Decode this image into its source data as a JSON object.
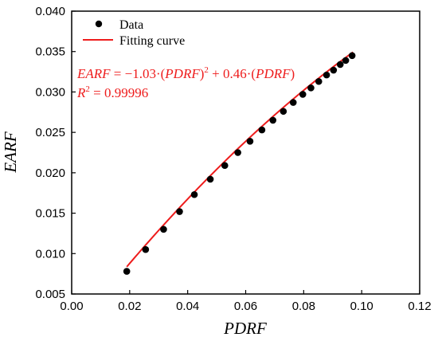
{
  "chart_data": {
    "type": "scatter",
    "xlabel": "PDRF",
    "ylabel": "EARF",
    "xlim": [
      0.0,
      0.12
    ],
    "ylim": [
      0.005,
      0.04
    ],
    "x_ticks": [
      "0.00",
      "0.02",
      "0.04",
      "0.06",
      "0.08",
      "0.10",
      "0.12"
    ],
    "y_ticks": [
      "0.005",
      "0.010",
      "0.015",
      "0.020",
      "0.025",
      "0.030",
      "0.035",
      "0.040"
    ],
    "legend": {
      "position": "top-left",
      "items": [
        "Data",
        "Fitting curve"
      ]
    },
    "series": [
      {
        "name": "Data",
        "style": "markers",
        "color": "#000000",
        "x": [
          0.019,
          0.0255,
          0.0317,
          0.0372,
          0.0423,
          0.0478,
          0.0528,
          0.0573,
          0.0615,
          0.0656,
          0.0694,
          0.073,
          0.0764,
          0.0797,
          0.0825,
          0.0852,
          0.0879,
          0.0903,
          0.0926,
          0.0945,
          0.0967
        ],
        "y": [
          0.0078,
          0.0105,
          0.013,
          0.0152,
          0.0173,
          0.0192,
          0.0209,
          0.0225,
          0.0239,
          0.0253,
          0.0265,
          0.0276,
          0.0287,
          0.0297,
          0.0305,
          0.0313,
          0.0321,
          0.0327,
          0.0334,
          0.0339,
          0.0345
        ]
      },
      {
        "name": "Fitting curve",
        "style": "line",
        "color": "#ee1c1c",
        "x_range": [
          0.019,
          0.097
        ],
        "coefficients": {
          "a2": -1.03,
          "a1": 0.46
        }
      }
    ],
    "annotations": {
      "equation_lhs": "EARF",
      "equation_rhs_1": " = −1.03·(",
      "equation_var_1": "PDRF",
      "equation_rhs_2": ")",
      "equation_sup": "2",
      "equation_rhs_3": " + 0.46·(",
      "equation_var_2": "PDRF",
      "equation_rhs_4": ")",
      "r2_label": "R",
      "r2_sup": "2",
      "r2_value": " = 0.99996"
    }
  }
}
